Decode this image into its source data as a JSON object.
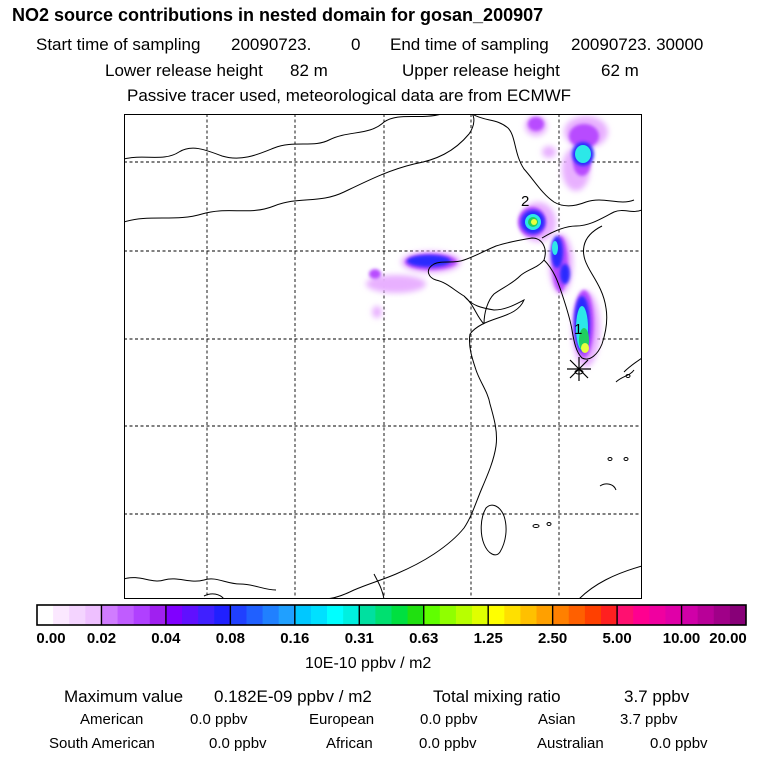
{
  "header": {
    "title": "NO2 source contributions in nested domain for gosan_200907",
    "start_label": "Start time of sampling",
    "start_value": "20090723.",
    "start_hour": "0",
    "end_label": "End time of sampling",
    "end_value": "20090723. 30000",
    "lower_label": "Lower release height",
    "lower_value": "82 m",
    "upper_label": "Upper release height",
    "upper_value": "62 m",
    "tracer_note": "Passive tracer used, meteorological data are from ECMWF"
  },
  "map": {
    "labels": {
      "source1": "1",
      "source2": "2"
    },
    "colors": {
      "plume_light": "#e8b0ff",
      "plume_mid": "#b84cff",
      "plume_blue": "#2c2cff",
      "plume_cyan": "#2ce8e8",
      "plume_green": "#20d060",
      "plume_yellow": "#e8ff40"
    }
  },
  "colorbar": {
    "ticks": [
      "0.00",
      "0.02",
      "0.04",
      "0.08",
      "0.16",
      "0.31",
      "0.63",
      "1.25",
      "2.50",
      "5.00",
      "10.00",
      "20.00"
    ],
    "colors": [
      [
        "#ffffff",
        "#fbe8ff",
        "#f4d4ff",
        "#eec0ff"
      ],
      [
        "#d07cff",
        "#c05cff",
        "#b040ff",
        "#a020f0"
      ],
      [
        "#8000ff",
        "#6010ff",
        "#4020ff",
        "#2020ff"
      ],
      [
        "#2040ff",
        "#2060ff",
        "#2080ff",
        "#20a0ff"
      ],
      [
        "#00c8ff",
        "#00e0ff",
        "#00ffff",
        "#00f0e0"
      ],
      [
        "#00e0a0",
        "#00e070",
        "#00e040",
        "#20e010"
      ],
      [
        "#60ff00",
        "#90ff00",
        "#b8ff00",
        "#e0ff00"
      ],
      [
        "#ffff00",
        "#ffe000",
        "#ffc000",
        "#ffa000"
      ],
      [
        "#ff8000",
        "#ff6000",
        "#ff4000",
        "#ff2020"
      ],
      [
        "#ff1070",
        "#ff0090",
        "#f000a0",
        "#e000a8"
      ],
      [
        "#d000a8",
        "#b80098",
        "#a00088",
        "#880078"
      ]
    ],
    "units": "10E-10 ppbv / m2"
  },
  "summary": {
    "max_label": "Maximum value",
    "max_value": "0.182E-09 ppbv / m2",
    "total_label": "Total mixing ratio",
    "total_value": "3.7 ppbv",
    "regions": [
      {
        "name": "American",
        "value": "0.0 ppbv"
      },
      {
        "name": "European",
        "value": "0.0 ppbv"
      },
      {
        "name": "Asian",
        "value": "3.7 ppbv"
      },
      {
        "name": "South American",
        "value": "0.0 ppbv"
      },
      {
        "name": "African",
        "value": "0.0 ppbv"
      },
      {
        "name": "Australian",
        "value": "0.0 ppbv"
      }
    ]
  }
}
